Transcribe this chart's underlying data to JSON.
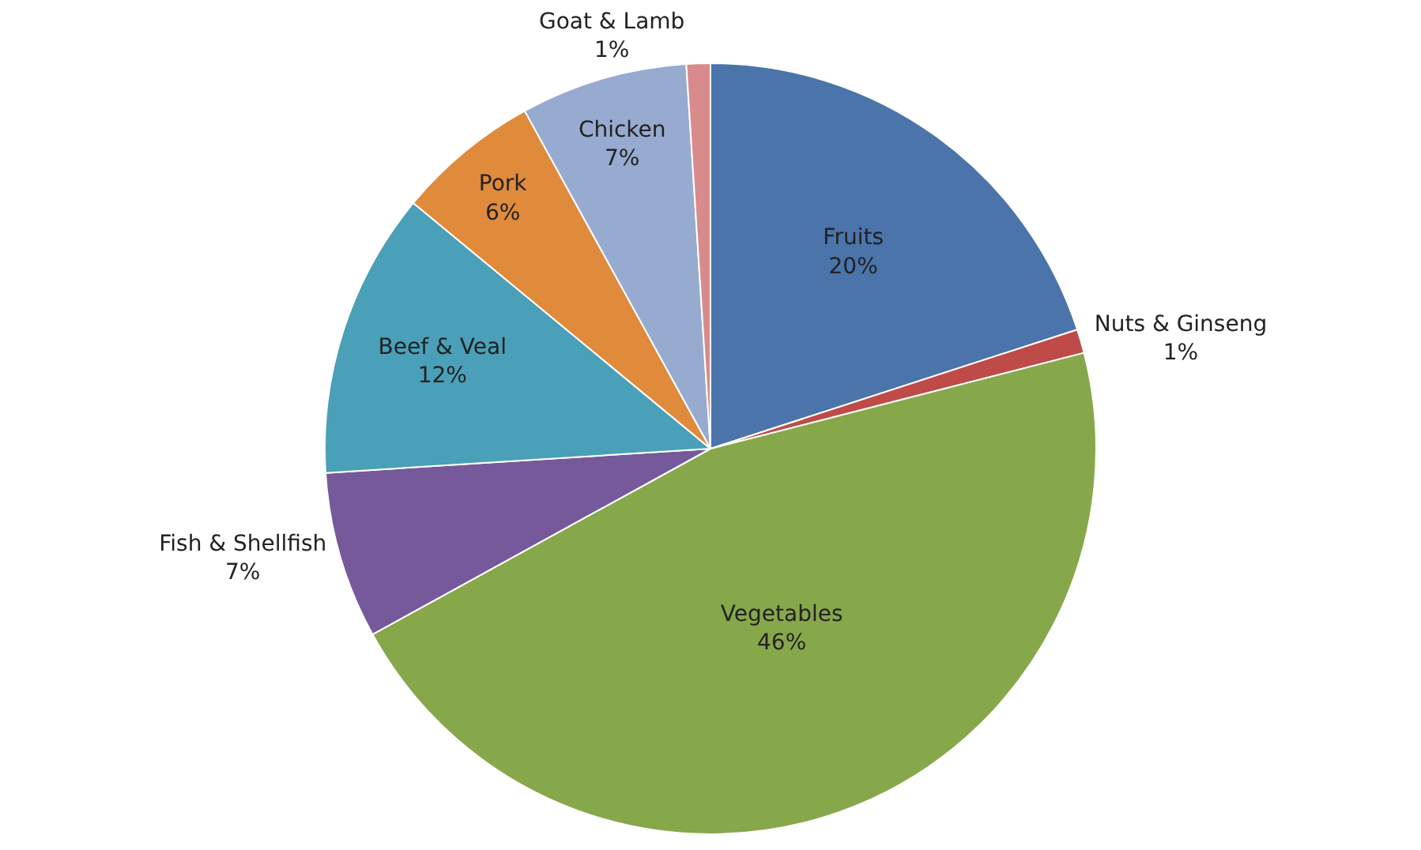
{
  "chart_data": {
    "type": "pie",
    "categories": [
      "Fruits",
      "Nuts & Ginseng",
      "Vegetables",
      "Fish & Shellfish",
      "Beef & Veal",
      "Pork",
      "Chicken",
      "Goat & Lamb"
    ],
    "values": [
      20,
      1,
      46,
      7,
      12,
      6,
      7,
      1
    ],
    "value_labels": [
      "20%",
      "1%",
      "46%",
      "7%",
      "12%",
      "6%",
      "7%",
      "1%"
    ],
    "colors": [
      "#4a74aa",
      "#be4b48",
      "#87a74b",
      "#76599a",
      "#4aa0b8",
      "#e08a3c",
      "#97abd0",
      "#d98b8b"
    ]
  }
}
